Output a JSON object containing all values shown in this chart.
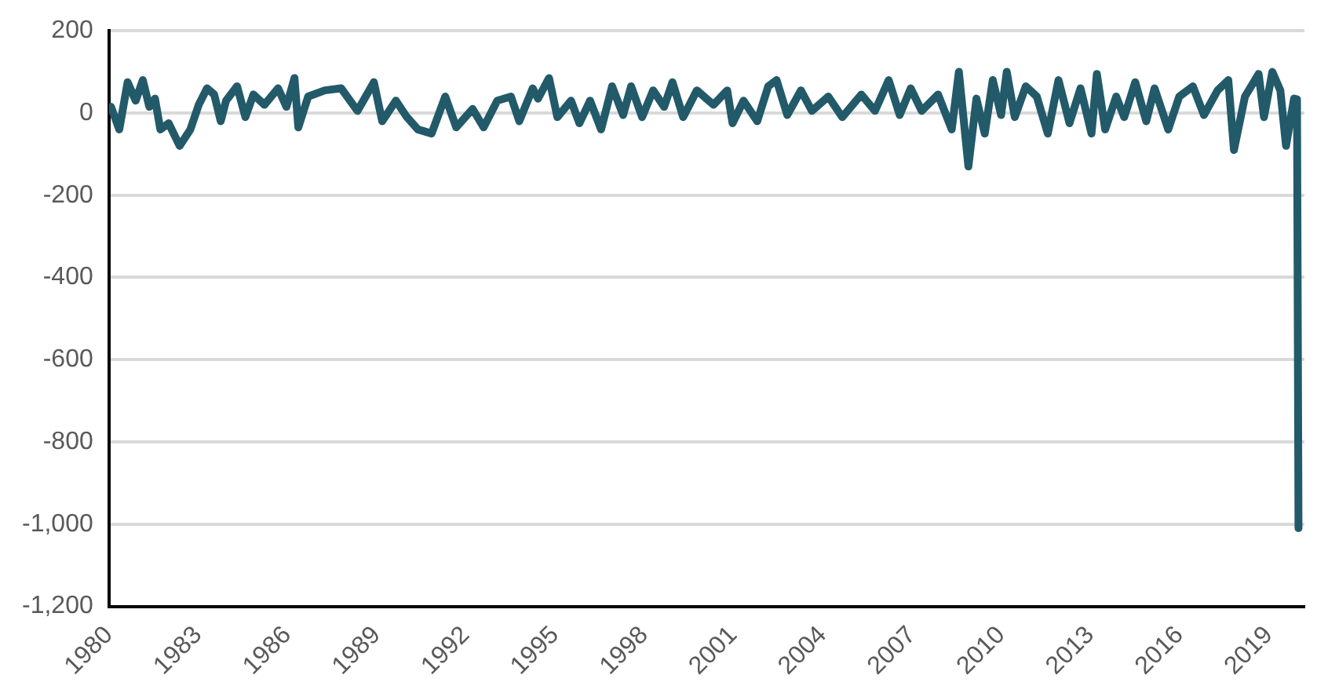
{
  "chart_data": {
    "type": "line",
    "marker": "none",
    "line_style": "solid",
    "grid": "y",
    "legend": false,
    "xlim": [
      1980,
      2020.2
    ],
    "xticks": [
      1980,
      1983,
      1986,
      1989,
      1992,
      1995,
      1998,
      2001,
      2004,
      2007,
      2010,
      2013,
      2016,
      2019
    ],
    "ylim": [
      -1200,
      200
    ],
    "yticks": [
      200,
      {
        "value": 0,
        "label": "0"
      },
      -200,
      -400,
      -600,
      -800,
      {
        "value": -1000,
        "label": "-1,000"
      },
      {
        "value": -1200,
        "label": "-1,200"
      }
    ],
    "x": [
      1980.07,
      1980.35,
      1980.63,
      1980.9,
      1981.14,
      1981.36,
      1981.55,
      1981.73,
      1982.01,
      1982.38,
      1982.74,
      1983.02,
      1983.3,
      1983.54,
      1983.76,
      1983.94,
      1984.31,
      1984.59,
      1984.86,
      1985.23,
      1985.69,
      1985.97,
      1986.24,
      1986.37,
      1986.7,
      1987.26,
      1987.81,
      1988.36,
      1988.91,
      1989.19,
      1989.65,
      1990.02,
      1990.39,
      1990.85,
      1991.31,
      1991.68,
      1992.23,
      1992.6,
      1993.06,
      1993.52,
      1993.8,
      1994.25,
      1994.43,
      1994.8,
      1995.08,
      1995.54,
      1995.82,
      1996.18,
      1996.55,
      1996.92,
      1997.29,
      1997.56,
      1997.93,
      1998.3,
      1998.67,
      1998.95,
      1999.31,
      1999.77,
      2000.33,
      2000.79,
      2000.97,
      2001.34,
      2001.8,
      2002.17,
      2002.45,
      2002.81,
      2003.27,
      2003.64,
      2004.19,
      2004.66,
      2005.3,
      2005.76,
      2006.22,
      2006.59,
      2006.96,
      2007.33,
      2007.88,
      2008.34,
      2008.58,
      2008.9,
      2009.17,
      2009.45,
      2009.72,
      2010.0,
      2010.19,
      2010.46,
      2010.83,
      2011.2,
      2011.57,
      2011.93,
      2012.3,
      2012.67,
      2013.04,
      2013.22,
      2013.5,
      2013.87,
      2014.14,
      2014.51,
      2014.88,
      2015.16,
      2015.62,
      2015.99,
      2016.45,
      2016.82,
      2017.28,
      2017.64,
      2017.83,
      2018.2,
      2018.66,
      2018.84,
      2019.12,
      2019.39,
      2019.58,
      2019.85,
      2019.95,
      2020.0
    ],
    "series": [
      {
        "color": "#235a6a",
        "values": [
          15,
          -40,
          75,
          30,
          80,
          15,
          35,
          -40,
          -25,
          -80,
          -40,
          20,
          60,
          45,
          -20,
          30,
          65,
          -10,
          45,
          20,
          60,
          15,
          85,
          -35,
          40,
          55,
          60,
          5,
          75,
          -20,
          30,
          -10,
          -40,
          -50,
          40,
          -35,
          10,
          -35,
          30,
          40,
          -20,
          60,
          35,
          85,
          -10,
          30,
          -25,
          30,
          -40,
          65,
          -5,
          65,
          -10,
          55,
          15,
          75,
          -10,
          55,
          20,
          55,
          -25,
          30,
          -20,
          65,
          80,
          -5,
          55,
          5,
          40,
          -10,
          45,
          5,
          80,
          -5,
          60,
          5,
          45,
          -40,
          100,
          -130,
          35,
          -50,
          80,
          -5,
          100,
          -10,
          65,
          40,
          -50,
          80,
          -25,
          60,
          -50,
          95,
          -40,
          40,
          -10,
          75,
          -20,
          60,
          -40,
          40,
          65,
          -5,
          55,
          80,
          -90,
          40,
          95,
          -10,
          100,
          55,
          -80,
          35,
          33,
          -1010
        ]
      }
    ]
  }
}
